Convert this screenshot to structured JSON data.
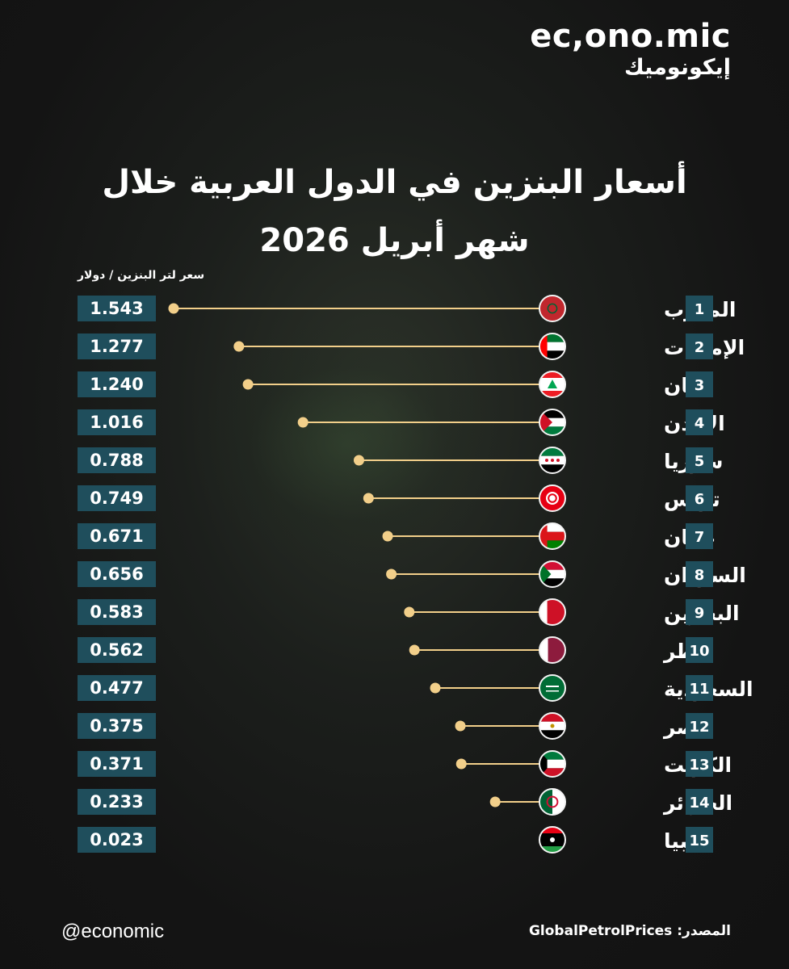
{
  "brand": {
    "logo_en": "ec,ono.mic",
    "logo_ar": "إيكونوميك"
  },
  "title_line1": "أسعار البنزين في الدول العربية خلال",
  "title_line2": "شهر أبريل 2026",
  "unit_label": "سعر لتر البنزين / دولار",
  "footer": {
    "handle": "@economic",
    "source_label": "المصدر:",
    "source_name": "GlobalPetrolPrices"
  },
  "colors": {
    "value_box": "#1f4e5c",
    "rank_box": "#1f4e5c",
    "line_dot": "#f2cf8a"
  },
  "chart_data": {
    "type": "bar",
    "style": "lollipop",
    "ylabel": "سعر لتر البنزين / دولار",
    "categories": [
      "المغرب",
      "الإمارات",
      "لبنان",
      "الأردن",
      "سوريا",
      "تونس",
      "عمان",
      "السودان",
      "البحرين",
      "قطر",
      "السعودية",
      "مصر",
      "الكويت",
      "الجزائر",
      "ليبيا"
    ],
    "ranks": [
      "1",
      "2",
      "3",
      "4",
      "5",
      "6",
      "7",
      "8",
      "9",
      "10",
      "11",
      "12",
      "13",
      "14",
      "15"
    ],
    "value_labels": [
      "1.543",
      "1.277",
      "1.240",
      "1.016",
      "0.788",
      "0.749",
      "0.671",
      "0.656",
      "0.583",
      "0.562",
      "0.477",
      "0.375",
      "0.371",
      "0.233",
      "0.023"
    ],
    "values": [
      1.543,
      1.277,
      1.24,
      1.016,
      0.788,
      0.749,
      0.671,
      0.656,
      0.583,
      0.562,
      0.477,
      0.375,
      0.371,
      0.233,
      0.023
    ],
    "flag_icons": [
      "morocco-flag-icon",
      "uae-flag-icon",
      "lebanon-flag-icon",
      "jordan-flag-icon",
      "syria-flag-icon",
      "tunisia-flag-icon",
      "oman-flag-icon",
      "sudan-flag-icon",
      "bahrain-flag-icon",
      "qatar-flag-icon",
      "saudi-flag-icon",
      "egypt-flag-icon",
      "kuwait-flag-icon",
      "algeria-flag-icon",
      "libya-flag-icon"
    ]
  }
}
